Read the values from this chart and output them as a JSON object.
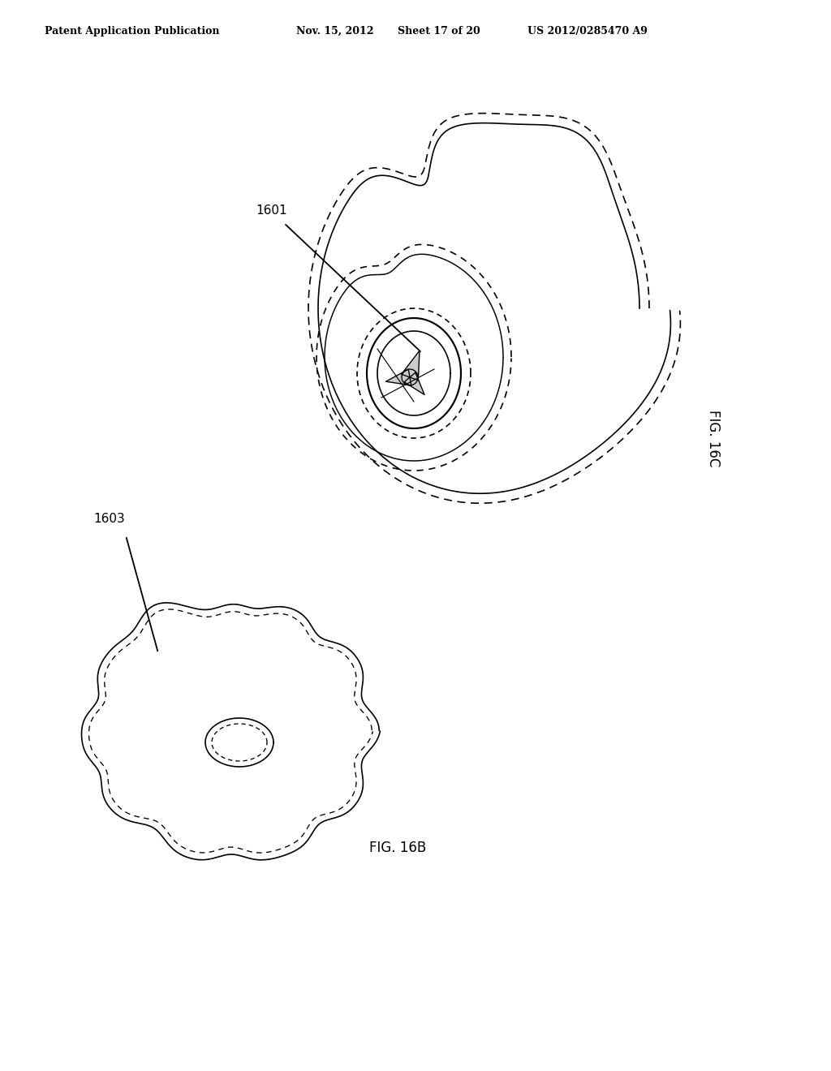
{
  "background_color": "#ffffff",
  "header_text": "Patent Application Publication",
  "header_date": "Nov. 15, 2012",
  "header_sheet": "Sheet 17 of 20",
  "header_patent": "US 2012/0285470 A9",
  "fig_top_label": "FIG. 16C",
  "fig_bottom_label": "FIG. 16B",
  "label_1601": "1601",
  "label_1603": "1603",
  "line_color": "#000000",
  "line_width": 1.2,
  "dashed_line_color": "#555555"
}
